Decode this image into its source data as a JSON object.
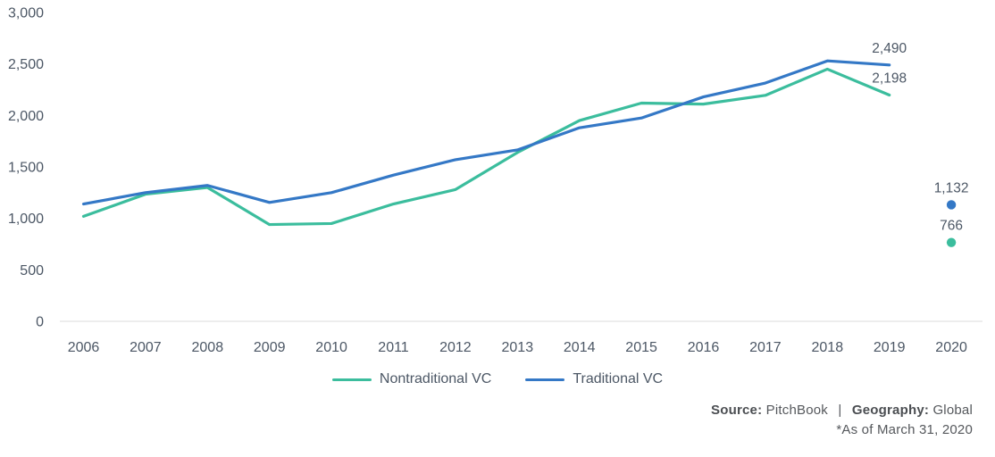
{
  "chart_data": {
    "type": "line",
    "title": "",
    "xlabel": "",
    "ylabel": "",
    "categories": [
      "2006",
      "2007",
      "2008",
      "2009",
      "2010",
      "2011",
      "2012",
      "2013",
      "2014",
      "2015",
      "2016",
      "2017",
      "2018",
      "2019",
      "2020"
    ],
    "series": [
      {
        "name": "Nontraditional VC",
        "color": "#3BBD9D",
        "values": [
          1020,
          1235,
          1300,
          940,
          950,
          1140,
          1280,
          1640,
          1950,
          2120,
          2110,
          2195,
          2450,
          2198,
          766
        ]
      },
      {
        "name": "Traditional VC",
        "color": "#3478C6",
        "values": [
          1140,
          1250,
          1320,
          1155,
          1250,
          1420,
          1570,
          1665,
          1880,
          1975,
          2180,
          2315,
          2530,
          2490,
          1132
        ]
      }
    ],
    "ylim": [
      0,
      3000
    ],
    "yticks": [
      0,
      500,
      1000,
      1500,
      2000,
      2500,
      3000
    ],
    "ytick_labels": [
      "0",
      "500",
      "1,000",
      "1,500",
      "2,000",
      "2,500",
      "3,000"
    ],
    "grid": false,
    "legend_position": "bottom",
    "isolated_categories": [
      "2020"
    ],
    "annotations": [
      {
        "text": "2,490",
        "series": "Traditional VC",
        "category": "2019"
      },
      {
        "text": "2,198",
        "series": "Nontraditional VC",
        "category": "2019"
      },
      {
        "text": "1,132",
        "series": "Traditional VC",
        "category": "2020"
      },
      {
        "text": "766",
        "series": "Nontraditional VC",
        "category": "2020"
      }
    ]
  },
  "footer": {
    "source_label": "Source:",
    "source_value": "PitchBook",
    "separator": "|",
    "geography_label": "Geography:",
    "geography_value": "Global",
    "asof": "*As of March 31, 2020"
  }
}
